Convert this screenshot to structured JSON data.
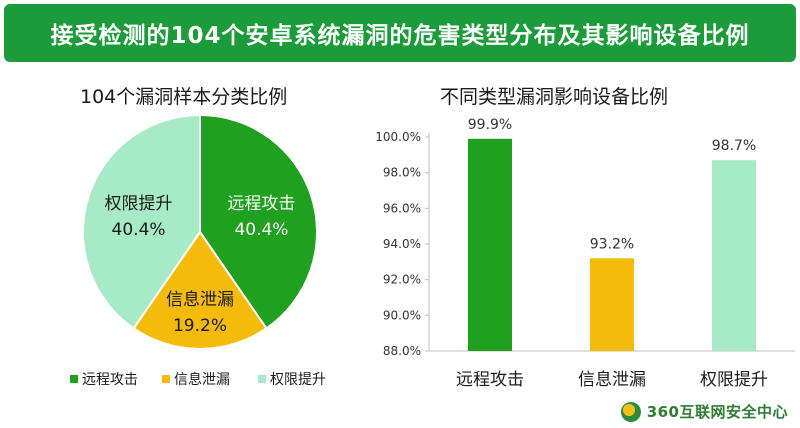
{
  "banner": {
    "title": "接受检测的104个安卓系统漏洞的危害类型分布及其影响设备比例"
  },
  "footer": {
    "brand": "360互联网安全中心"
  },
  "colors": {
    "remote": "#1fa01f",
    "leak": "#f5bb0b",
    "privilege": "#a6ebc6",
    "banner": "#1c9b3a"
  },
  "chart_data": [
    {
      "type": "pie",
      "title": "104个漏洞样本分类比例",
      "categories": [
        "远程攻击",
        "信息泄漏",
        "权限提升"
      ],
      "values": [
        40.4,
        19.2,
        40.4
      ],
      "labels": [
        "40.4%",
        "19.2%",
        "40.4%"
      ],
      "legend": [
        "远程攻击",
        "信息泄漏",
        "权限提升"
      ],
      "legend_placement": "bottom"
    },
    {
      "type": "bar",
      "title": "不同类型漏洞影响设备比例",
      "categories": [
        "远程攻击",
        "信息泄漏",
        "权限提升"
      ],
      "values": [
        99.9,
        93.2,
        98.7
      ],
      "labels": [
        "99.9%",
        "93.2%",
        "98.7%"
      ],
      "ylim": [
        88.0,
        100.0
      ],
      "yticks": [
        "88.0%",
        "90.0%",
        "92.0%",
        "94.0%",
        "96.0%",
        "98.0%",
        "100.0%"
      ],
      "grid": false
    }
  ]
}
